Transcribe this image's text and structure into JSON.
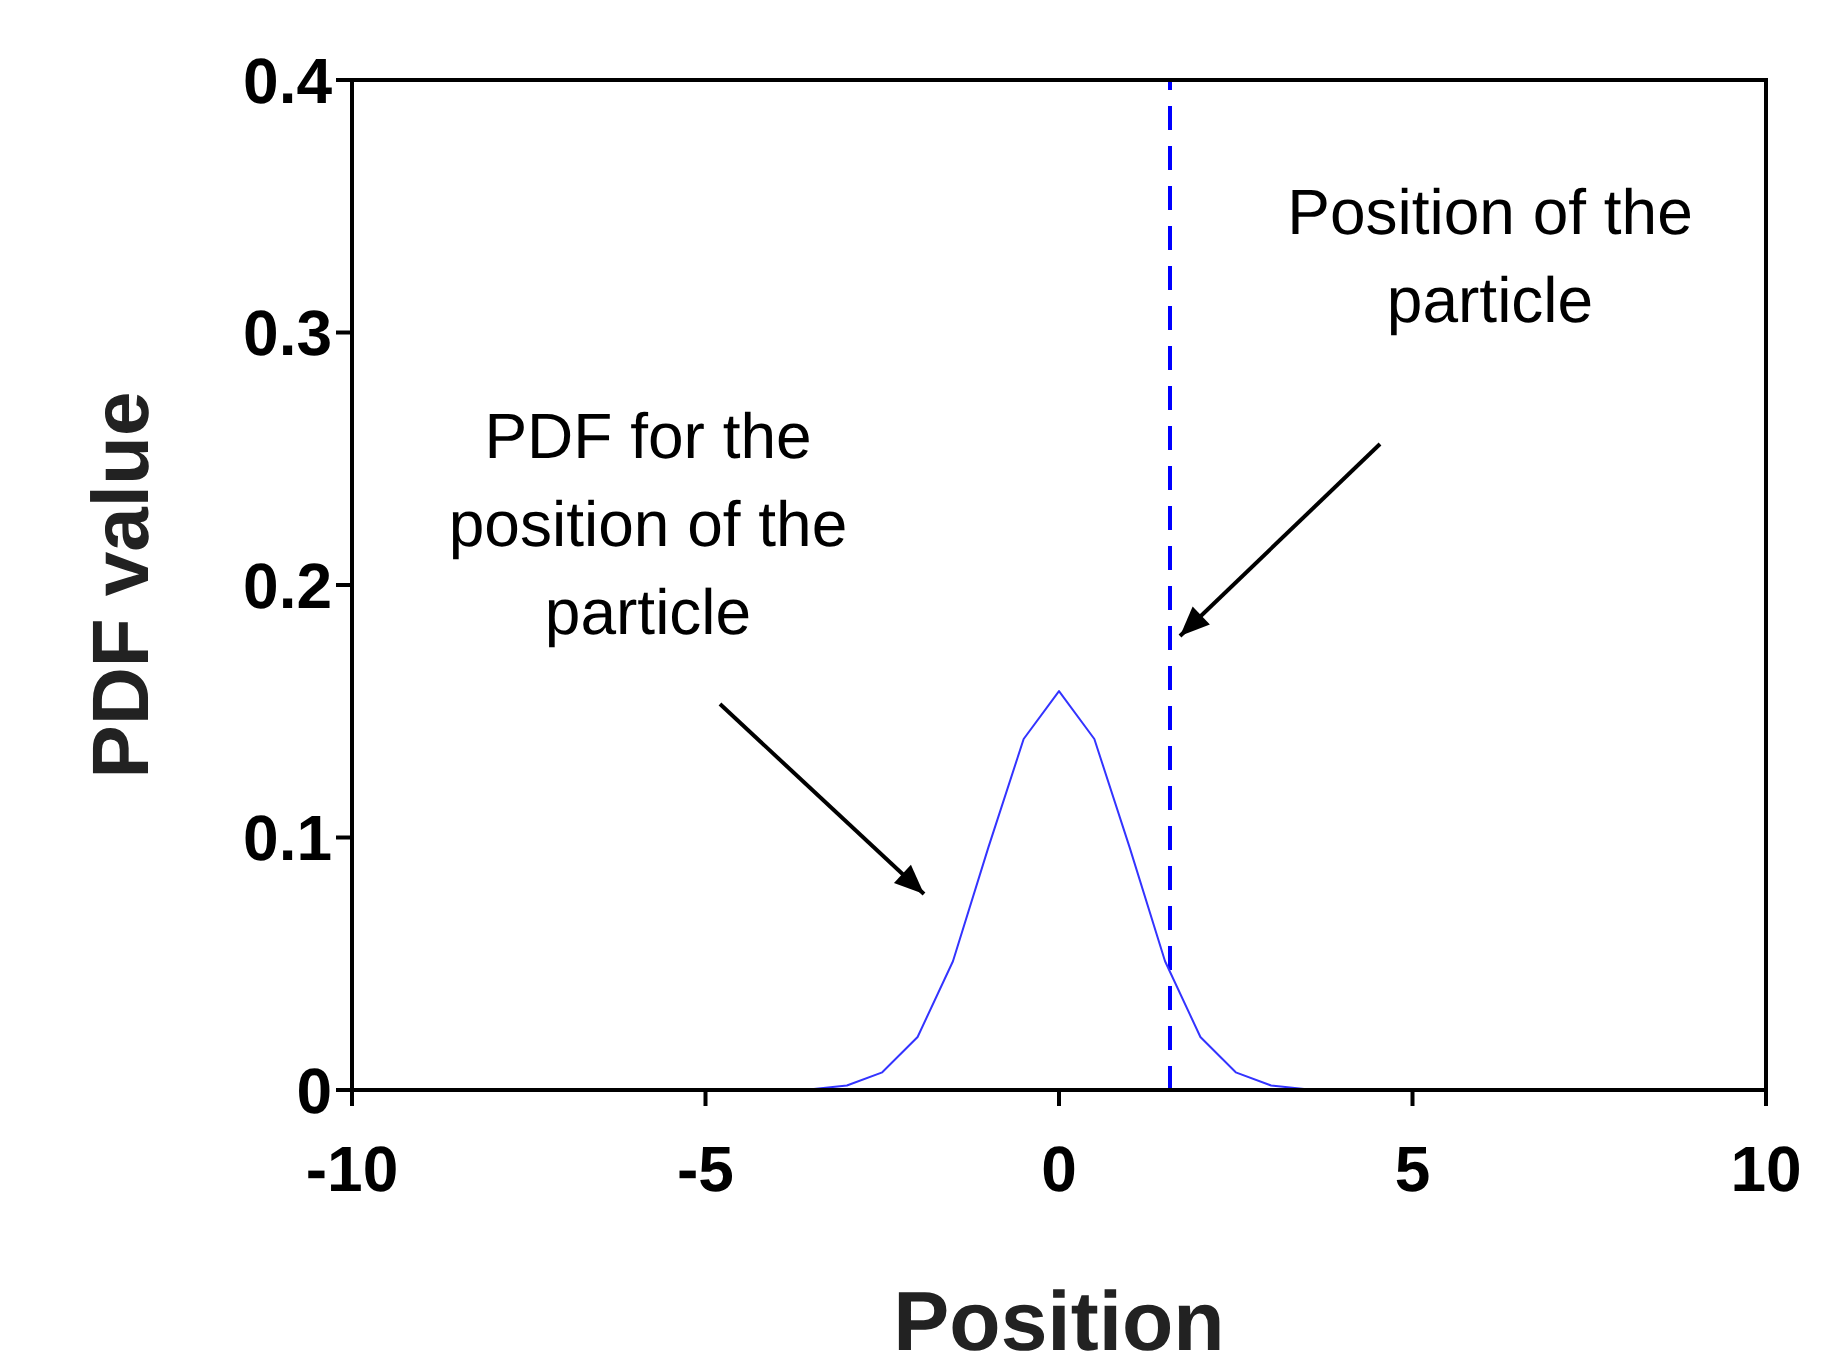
{
  "chart_data": {
    "type": "line",
    "xlabel": "Position",
    "ylabel": "PDF value",
    "x": [
      -10,
      -4,
      -3.5,
      -3,
      -2.5,
      -2,
      -1.5,
      -1,
      -0.5,
      0,
      0.5,
      1,
      1.5,
      2,
      2.5,
      3,
      3.5,
      4,
      10
    ],
    "series": [
      {
        "color": "#3333ff",
        "values": [
          0,
          0,
          0.0003,
          0.0018,
          0.007,
          0.021,
          0.051,
          0.096,
          0.139,
          0.158,
          0.139,
          0.096,
          0.051,
          0.021,
          0.007,
          0.0018,
          0.0003,
          0,
          0
        ]
      }
    ],
    "xlim": [
      -10,
      10
    ],
    "xticks": [
      -10,
      -5,
      0,
      5,
      10
    ],
    "ylim": [
      0,
      0.4
    ],
    "yticks": [
      0,
      0.1,
      0.2,
      0.3,
      0.4
    ],
    "grid": false,
    "legend": false,
    "marker": "none",
    "line_style": "solid",
    "ref_lines": [
      {
        "axis": "x",
        "value": 1.57,
        "color": "#0000ff",
        "line_style": "dashed"
      }
    ],
    "annotations": [
      "PDF for the position of the particle",
      "Position of the particle"
    ]
  }
}
